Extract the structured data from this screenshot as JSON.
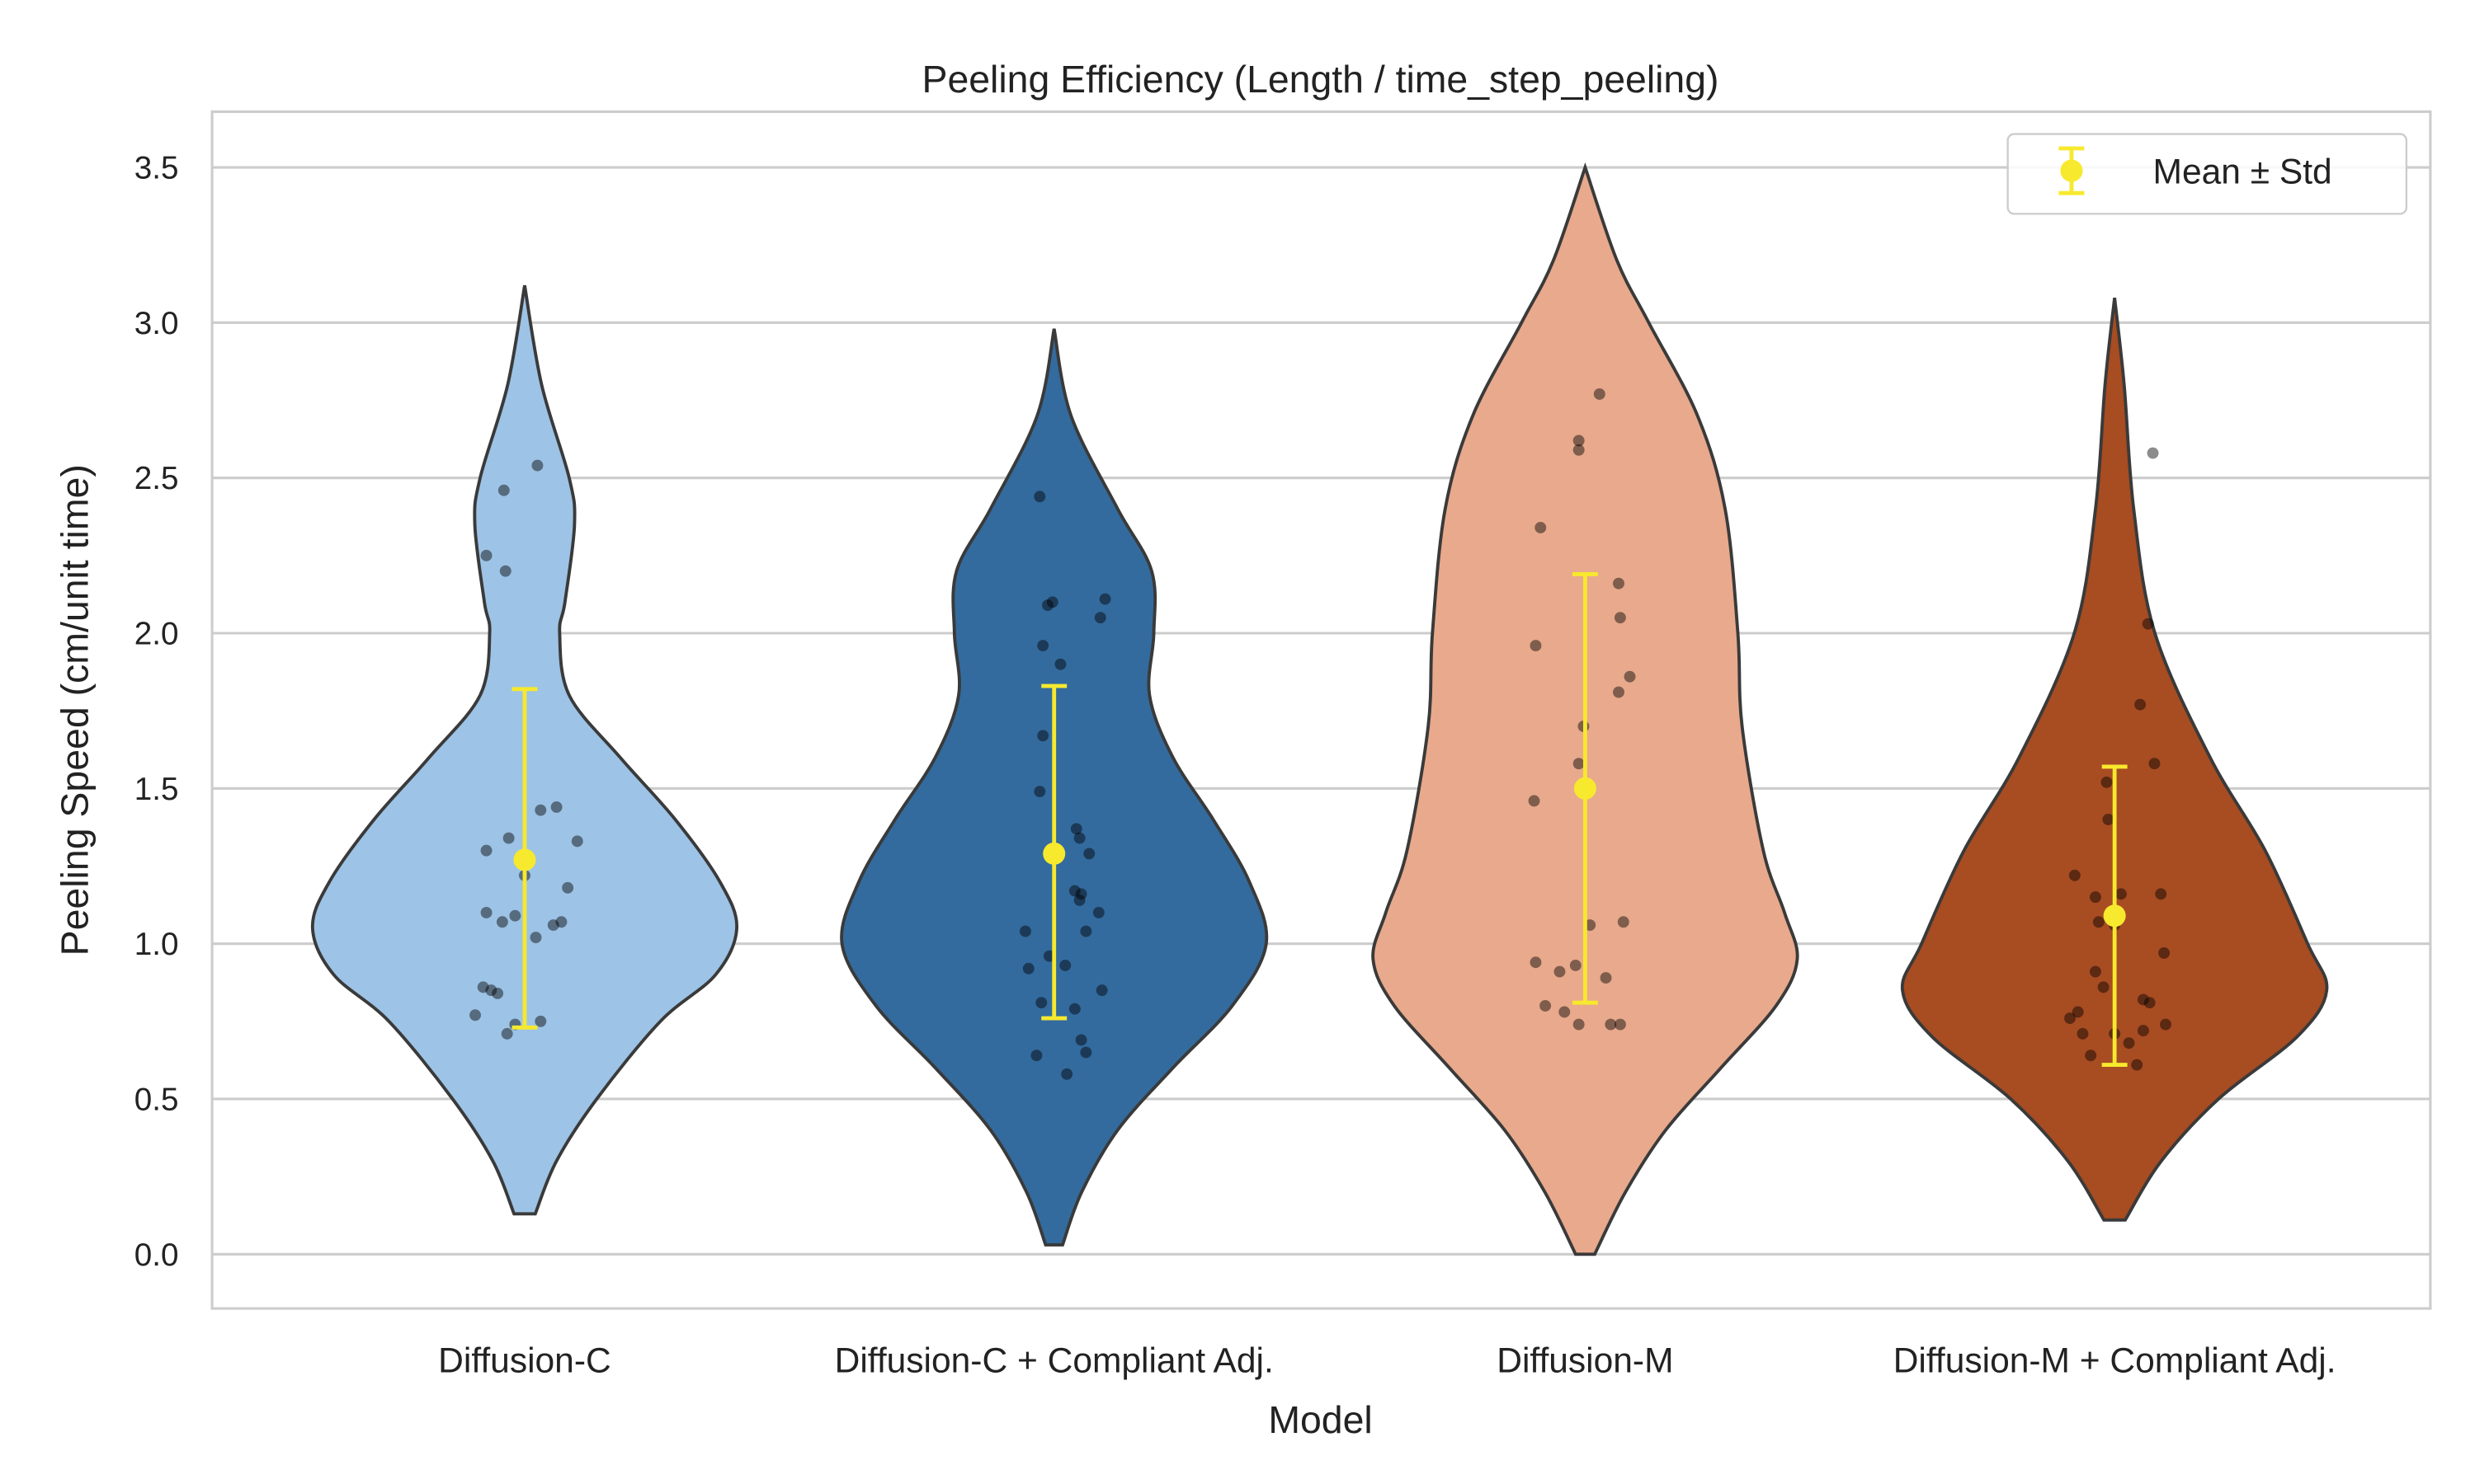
{
  "chart_data": {
    "type": "violin",
    "title": "Peeling Efficiency (Length / time_step_peeling)",
    "xlabel": "Model",
    "ylabel": "Peeling Speed (cm/unit time)",
    "ylim": [
      -0.17,
      3.68
    ],
    "yticks": [
      0.0,
      0.5,
      1.0,
      1.5,
      2.0,
      2.5,
      3.0,
      3.5
    ],
    "ytick_labels": [
      "0.0",
      "0.5",
      "1.0",
      "1.5",
      "2.0",
      "2.5",
      "3.0",
      "3.5"
    ],
    "grid": "horizontal",
    "legend": {
      "placement": "top-right",
      "entries": [
        {
          "label": "Mean ± Std",
          "color": "#f7e92d",
          "marker": "errorbar-dot"
        }
      ]
    },
    "point_color": "#000000",
    "mean_color": "#f7e92d",
    "outline_color": "#3a3a3a",
    "categories": [
      "Diffusion-C",
      "Diffusion-C + Compliant Adj.",
      "Diffusion-M",
      "Diffusion-M + Compliant Adj."
    ],
    "series": [
      {
        "category": "Diffusion-C",
        "color": "#9dc3e6",
        "mean": 1.27,
        "std_low": 0.73,
        "std_high": 1.82,
        "density_profile": {
          "y": [
            0.13,
            0.3,
            0.5,
            0.75,
            0.9,
            1.05,
            1.2,
            1.4,
            1.6,
            1.8,
            2.0,
            2.1,
            2.35,
            2.5,
            2.8,
            3.12
          ],
          "density": [
            0.05,
            0.15,
            0.34,
            0.64,
            0.9,
            1.0,
            0.92,
            0.71,
            0.45,
            0.21,
            0.165,
            0.19,
            0.235,
            0.21,
            0.08,
            0.0
          ]
        },
        "points": [
          2.54,
          2.46,
          2.25,
          2.2,
          1.44,
          1.43,
          1.33,
          1.34,
          1.3,
          1.22,
          1.18,
          1.1,
          1.09,
          1.07,
          1.07,
          1.06,
          1.02,
          0.86,
          0.85,
          0.84,
          0.77,
          0.75,
          0.74,
          0.71
        ]
      },
      {
        "category": "Diffusion-C + Compliant Adj.",
        "color": "#336b9e",
        "mean": 1.29,
        "std_low": 0.76,
        "std_high": 1.83,
        "density_profile": {
          "y": [
            0.03,
            0.2,
            0.4,
            0.6,
            0.8,
            1.0,
            1.2,
            1.4,
            1.6,
            1.8,
            2.0,
            2.2,
            2.4,
            2.7,
            2.98
          ],
          "density": [
            0.04,
            0.13,
            0.3,
            0.56,
            0.84,
            1.0,
            0.92,
            0.75,
            0.56,
            0.45,
            0.47,
            0.46,
            0.3,
            0.08,
            0.0
          ]
        },
        "points": [
          2.44,
          2.1,
          2.11,
          2.09,
          2.05,
          1.96,
          1.9,
          1.67,
          1.49,
          1.37,
          1.34,
          1.29,
          1.17,
          1.16,
          1.14,
          1.1,
          1.04,
          1.04,
          0.96,
          0.93,
          0.92,
          0.85,
          0.81,
          0.79,
          0.69,
          0.65,
          0.64,
          0.58
        ]
      },
      {
        "category": "Diffusion-M",
        "color": "#e8a98c",
        "mean": 1.5,
        "std_low": 0.81,
        "std_high": 2.19,
        "density_profile": {
          "y": [
            0.0,
            0.2,
            0.4,
            0.6,
            0.8,
            0.95,
            1.1,
            1.3,
            1.7,
            2.0,
            2.4,
            2.7,
            3.0,
            3.2,
            3.5
          ],
          "density": [
            0.045,
            0.19,
            0.38,
            0.64,
            0.9,
            1.0,
            0.94,
            0.84,
            0.74,
            0.72,
            0.66,
            0.53,
            0.3,
            0.15,
            0.0
          ]
        },
        "points": [
          2.77,
          2.62,
          2.59,
          2.34,
          2.16,
          2.05,
          1.96,
          1.86,
          1.81,
          1.7,
          1.58,
          1.46,
          1.07,
          1.06,
          0.94,
          0.93,
          0.91,
          0.89,
          0.8,
          0.78,
          0.74,
          0.74,
          0.74
        ]
      },
      {
        "category": "Diffusion-M + Compliant Adj.",
        "color": "#a84c22",
        "mean": 1.09,
        "std_low": 0.61,
        "std_high": 1.57,
        "density_profile": {
          "y": [
            0.11,
            0.3,
            0.5,
            0.7,
            0.85,
            1.0,
            1.3,
            1.6,
            2.0,
            2.4,
            2.8,
            3.08
          ],
          "density": [
            0.05,
            0.22,
            0.49,
            0.86,
            1.0,
            0.91,
            0.71,
            0.45,
            0.19,
            0.09,
            0.045,
            0.0
          ]
        },
        "points": [
          2.58,
          2.03,
          1.77,
          1.58,
          1.52,
          1.4,
          1.22,
          1.15,
          1.16,
          1.16,
          1.07,
          1.06,
          0.97,
          0.91,
          0.86,
          0.82,
          0.81,
          0.78,
          0.76,
          0.71,
          0.71,
          0.72,
          0.74,
          0.68,
          0.64,
          0.61
        ]
      }
    ]
  }
}
